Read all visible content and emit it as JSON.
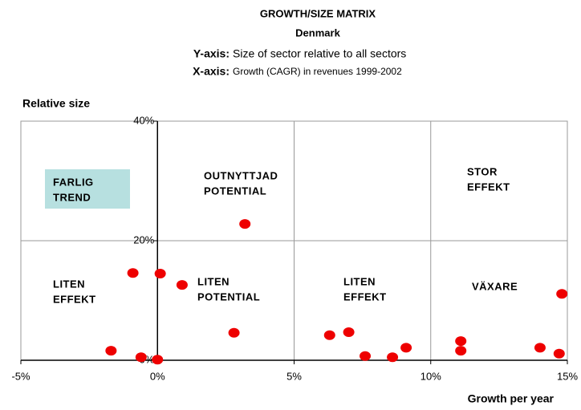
{
  "chart_data": {
    "type": "scatter",
    "title": "GROWTH/SIZE MATRIX",
    "subtitle": "Denmark",
    "y_note": {
      "label": "Y-axis:",
      "text": "Size of sector relative to all sectors"
    },
    "x_note": {
      "label": "X-axis:",
      "text": "Growth (CAGR) in revenues 1999-2002"
    },
    "y_label": "Relative size",
    "x_label": "Growth per year",
    "xlim": [
      -5,
      15
    ],
    "ylim": [
      0,
      40
    ],
    "xticks": [
      {
        "value": -5,
        "label": "-5%"
      },
      {
        "value": 0,
        "label": "0%"
      },
      {
        "value": 5,
        "label": "5%"
      },
      {
        "value": 10,
        "label": "10%"
      },
      {
        "value": 15,
        "label": "15%"
      }
    ],
    "yticks": [
      {
        "value": 0,
        "label": "0%"
      },
      {
        "value": 20,
        "label": "20%"
      },
      {
        "value": 40,
        "label": "40%"
      }
    ],
    "grid": true,
    "color": "#ee0000",
    "x": [
      -1.7,
      -0.6,
      0.0,
      -0.9,
      0.1,
      0.9,
      2.8,
      3.2,
      6.3,
      7.0,
      7.6,
      8.6,
      9.1,
      11.1,
      11.1,
      14.0,
      14.7,
      14.8
    ],
    "values": [
      1.6,
      0.5,
      0.1,
      14.6,
      14.5,
      12.6,
      4.6,
      22.8,
      4.2,
      4.7,
      0.7,
      0.5,
      2.1,
      3.2,
      1.6,
      2.1,
      1.1,
      11.1
    ],
    "annotations": [
      {
        "lines": [
          "FARLIG",
          "TREND"
        ]
      },
      {
        "lines": [
          "OUTNYTTJAD",
          "POTENTIAL"
        ]
      },
      {
        "lines": [
          "STOR",
          "EFFEKT"
        ]
      },
      {
        "lines": [
          "LITEN",
          "EFFEKT"
        ]
      },
      {
        "lines": [
          "LITEN",
          "POTENTIAL"
        ]
      },
      {
        "lines": [
          "LITEN",
          "EFFEKT"
        ]
      },
      {
        "lines": [
          "VÄXARE"
        ]
      }
    ]
  }
}
